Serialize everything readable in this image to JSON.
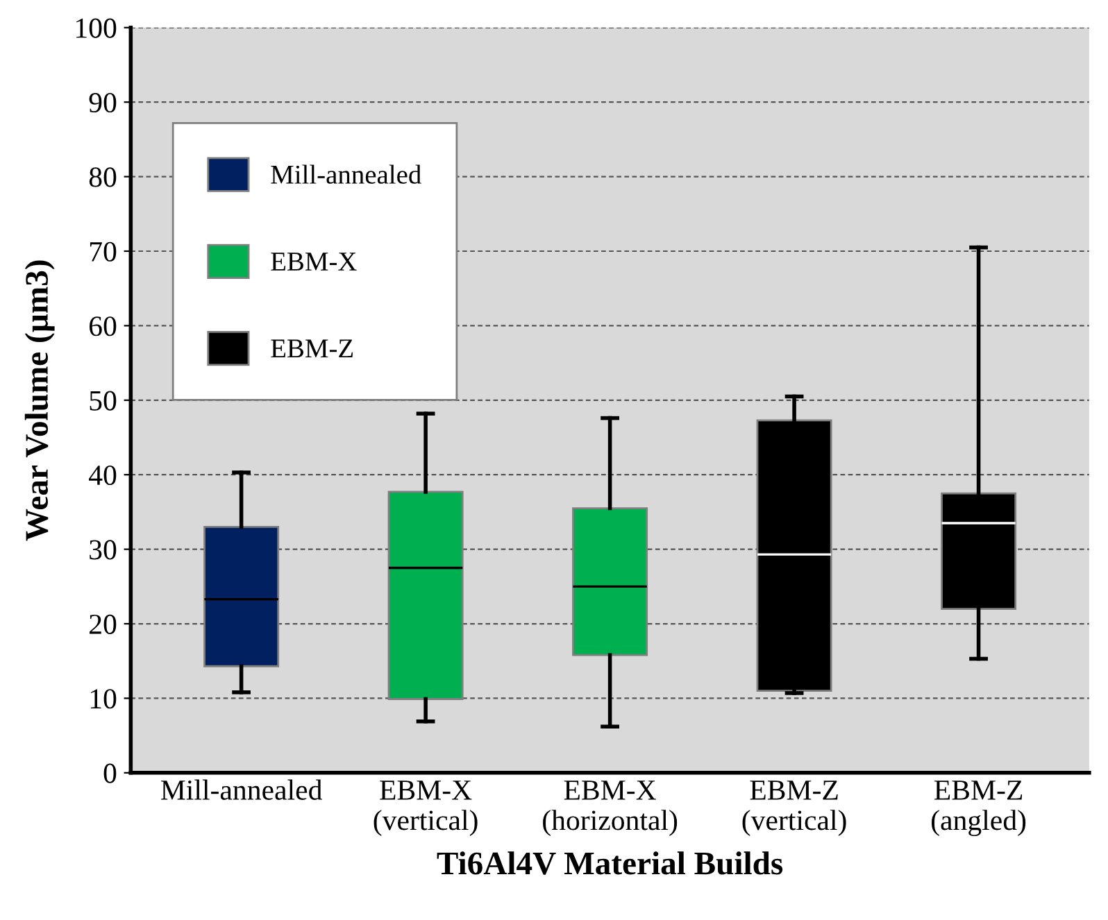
{
  "chart_data": {
    "type": "box",
    "xlabel": "Ti6Al4V Material Builds",
    "ylabel": "Wear Volume (µm3)",
    "categories": [
      "Mill-annealed",
      "EBM-X\n(vertical)",
      "EBM-X\n(horizontal)",
      "EBM-Z\n(vertical)",
      "EBM-Z\n(angled)"
    ],
    "series": [
      {
        "name": "Mill-annealed",
        "color": "#002060",
        "boxes": [
          {
            "low": 10.8,
            "q1": 14.3,
            "median": 23.3,
            "q3": 33.0,
            "high": 40.3
          },
          null,
          null,
          null,
          null
        ]
      },
      {
        "name": "EBM-X",
        "color": "#00b050",
        "boxes": [
          null,
          {
            "low": 6.9,
            "q1": 9.9,
            "median": 27.5,
            "q3": 37.7,
            "high": 48.2
          },
          {
            "low": 6.2,
            "q1": 15.8,
            "median": 25.0,
            "q3": 35.5,
            "high": 47.6
          },
          null,
          null
        ]
      },
      {
        "name": "EBM-Z",
        "color": "#000000",
        "boxes": [
          null,
          null,
          null,
          {
            "low": 10.7,
            "q1": 11.0,
            "median": 29.3,
            "q3": 47.3,
            "high": 50.5
          },
          {
            "low": 15.3,
            "q1": 22.0,
            "median": 33.5,
            "q3": 37.5,
            "high": 70.5
          }
        ]
      }
    ],
    "ylim": [
      0,
      100
    ],
    "yticks": [
      0,
      10,
      20,
      30,
      40,
      50,
      60,
      70,
      80,
      90,
      100
    ],
    "grid": "y",
    "legend": "top left"
  }
}
